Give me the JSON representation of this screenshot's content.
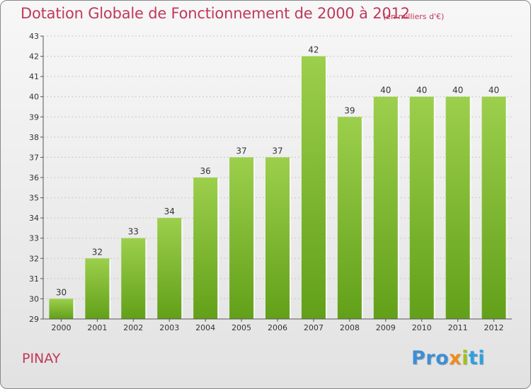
{
  "title": "Dotation Globale de Fonctionnement de 2000 à 2012",
  "subtitle": "(en milliers d'€)",
  "commune": "PINAY",
  "logo": {
    "p1": "Pro",
    "p2": "x",
    "p3": "i",
    "p4": "ti"
  },
  "colors": {
    "bar_top": "#9ccf4c",
    "bar_bottom": "#62a019",
    "title": "#c0395a",
    "axis_text": "#333333"
  },
  "chart_data": {
    "type": "bar",
    "title": "Dotation Globale de Fonctionnement de 2000 à 2012",
    "subtitle": "(en milliers d'€)",
    "categories": [
      "2000",
      "2001",
      "2002",
      "2003",
      "2004",
      "2005",
      "2006",
      "2007",
      "2008",
      "2009",
      "2010",
      "2011",
      "2012"
    ],
    "values": [
      30,
      32,
      33,
      34,
      36,
      37,
      37,
      42,
      39,
      40,
      40,
      40,
      40
    ],
    "data_labels": [
      "30",
      "32",
      "33",
      "34",
      "36",
      "37",
      "37",
      "42",
      "39",
      "40",
      "40",
      "40",
      "40"
    ],
    "ylim": [
      29,
      43
    ],
    "yticks": [
      29,
      30,
      31,
      32,
      33,
      34,
      35,
      36,
      37,
      38,
      39,
      40,
      41,
      42,
      43
    ],
    "grid": true,
    "legend": "none"
  }
}
